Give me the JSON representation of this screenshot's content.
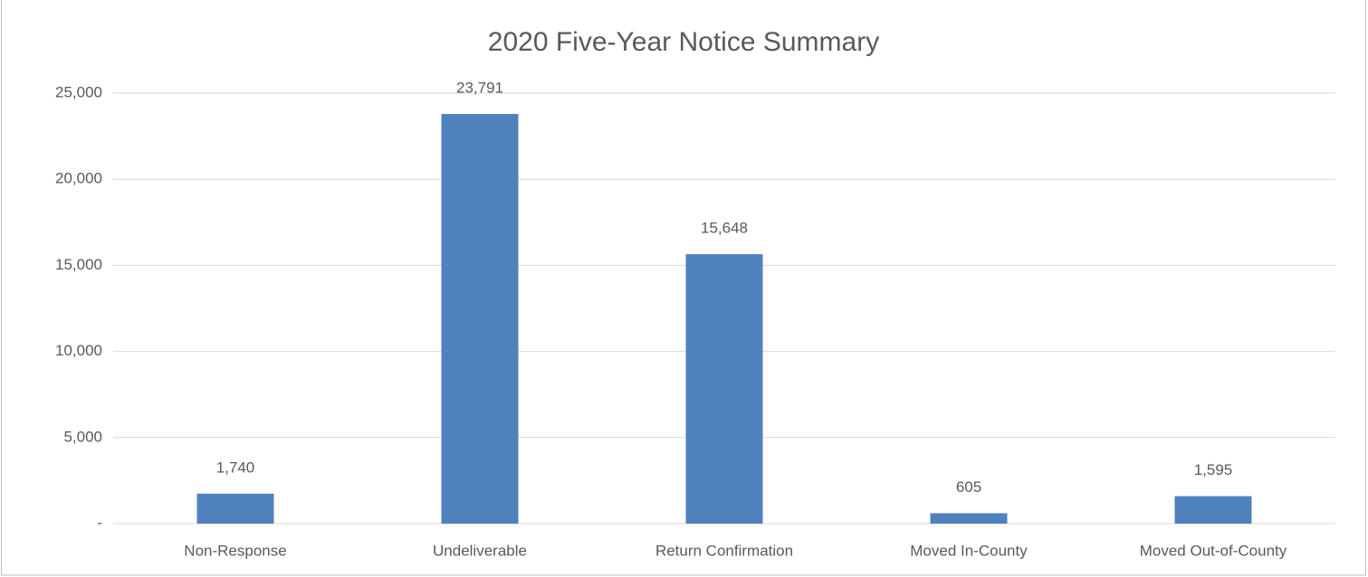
{
  "chart_data": {
    "type": "bar",
    "title": "2020 Five-Year Notice Summary",
    "categories": [
      "Non-Response",
      "Undeliverable",
      "Return Confirmation",
      "Moved In-County",
      "Moved Out-of-County"
    ],
    "values": [
      1740,
      23791,
      15648,
      605,
      1595
    ],
    "value_labels": [
      "1,740",
      "23,791",
      "15,648",
      "605",
      "1,595"
    ],
    "color": "#4f81bd",
    "ylim": [
      0,
      25000
    ],
    "yticks": [
      {
        "value": 0,
        "label": "-"
      },
      {
        "value": 5000,
        "label": "5,000"
      },
      {
        "value": 10000,
        "label": "10,000"
      },
      {
        "value": 15000,
        "label": "15,000"
      },
      {
        "value": 20000,
        "label": "20,000"
      },
      {
        "value": 25000,
        "label": "25,000"
      }
    ],
    "grid": true
  }
}
